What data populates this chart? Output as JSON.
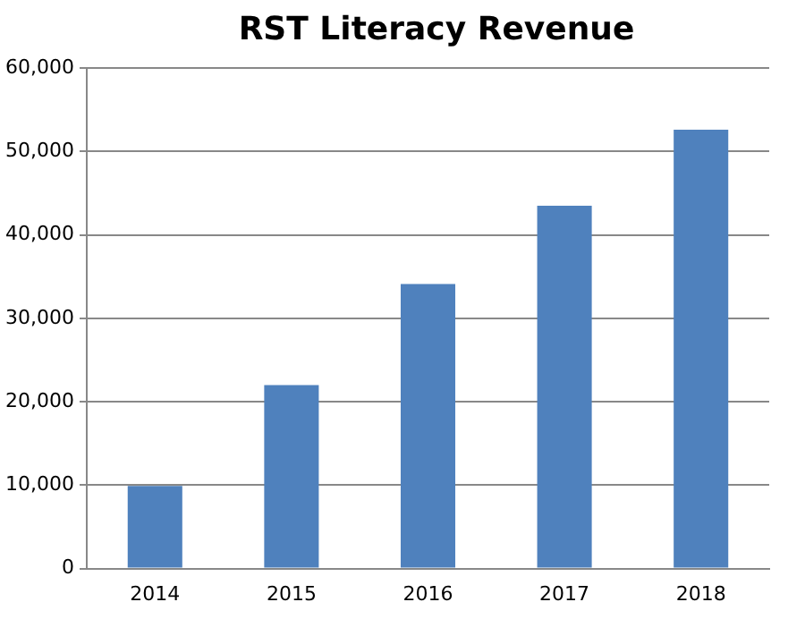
{
  "chart_data": {
    "type": "bar",
    "title": "RST Literacy Revenue",
    "categories": [
      "2014",
      "2015",
      "2016",
      "2017",
      "2018"
    ],
    "values": [
      9900,
      22000,
      34100,
      43500,
      52600
    ],
    "color": "#4f81bd",
    "ylim": [
      0,
      60000
    ],
    "yticks": [
      {
        "value": 0,
        "label": "0"
      },
      {
        "value": 10000,
        "label": "10,000"
      },
      {
        "value": 20000,
        "label": "20,000"
      },
      {
        "value": 30000,
        "label": "30,000"
      },
      {
        "value": 40000,
        "label": "40,000"
      },
      {
        "value": 50000,
        "label": "50,000"
      },
      {
        "value": 60000,
        "label": "60,000"
      }
    ],
    "grid": "y"
  }
}
